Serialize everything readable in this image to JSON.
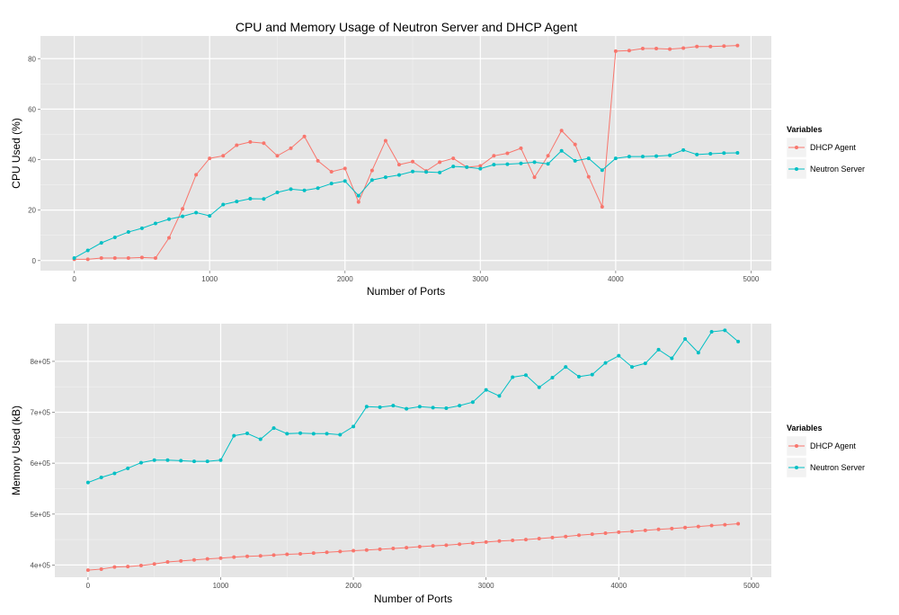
{
  "colors": {
    "dhcp_agent": "#F8766D",
    "neutron_server": "#00BFC4",
    "panel_bg": "#E5E5E5",
    "grid_major": "#FFFFFF",
    "grid_minor": "#F2F2F2"
  },
  "chart_data": [
    {
      "type": "line",
      "title": "CPU and Memory Usage of Neutron Server and DHCP Agent",
      "xlabel": "Number of Ports",
      "ylabel": "CPU Used (%)",
      "xlim": [
        -250,
        5150
      ],
      "ylim": [
        -4,
        89
      ],
      "x_ticks": [
        0,
        1000,
        2000,
        3000,
        4000,
        5000
      ],
      "x_tick_labels": [
        "0",
        "1000",
        "2000",
        "3000",
        "4000",
        "5000"
      ],
      "y_ticks": [
        0,
        20,
        40,
        60,
        80
      ],
      "y_tick_labels": [
        "0",
        "20",
        "40",
        "60",
        "80"
      ],
      "grid": true,
      "legend": {
        "title": "Variables",
        "position": "right"
      },
      "x": [
        0,
        100,
        200,
        300,
        400,
        500,
        600,
        700,
        800,
        900,
        1000,
        1100,
        1200,
        1300,
        1400,
        1500,
        1600,
        1700,
        1800,
        1900,
        2000,
        2100,
        2200,
        2300,
        2400,
        2500,
        2600,
        2700,
        2800,
        2900,
        3000,
        3100,
        3200,
        3300,
        3400,
        3500,
        3600,
        3700,
        3800,
        3900,
        4000,
        4100,
        4200,
        4300,
        4400,
        4500,
        4600,
        4700,
        4800,
        4900
      ],
      "series": [
        {
          "name": "DHCP Agent",
          "color_key": "dhcp_agent",
          "values": [
            0.5,
            0.5,
            1,
            1,
            1,
            1.2,
            1,
            9,
            20.5,
            34,
            40.5,
            41.5,
            45.7,
            47,
            46.5,
            41.5,
            44.5,
            49.2,
            39.5,
            35.2,
            36.5,
            23.2,
            35.7,
            47.5,
            38,
            39.2,
            35.5,
            39,
            40.5,
            37,
            37.5,
            41.5,
            42.5,
            44.5,
            33,
            41.5,
            51.5,
            46,
            33.2,
            21.3,
            83,
            83.2,
            84,
            84,
            83.8,
            84.2,
            84.8,
            84.8,
            85,
            85.2
          ]
        },
        {
          "name": "Neutron Server",
          "color_key": "neutron_server",
          "values": [
            1,
            4,
            7,
            9.2,
            11.3,
            12.8,
            14.7,
            16.4,
            17.5,
            19,
            17.7,
            22.2,
            23.4,
            24.5,
            24.4,
            27,
            28.3,
            27.8,
            28.7,
            30.5,
            31.5,
            25.7,
            31.9,
            33,
            33.9,
            35.3,
            35.1,
            34.9,
            37.3,
            37,
            36.4,
            38,
            38.2,
            38.5,
            39,
            38.3,
            43.5,
            39.5,
            40.5,
            35.8,
            40.5,
            41.2,
            41.2,
            41.4,
            41.7,
            43.8,
            42,
            42.3,
            42.6,
            42.7
          ]
        }
      ]
    },
    {
      "type": "line",
      "title": "",
      "xlabel": "Number of Ports",
      "ylabel": "Memory Used (kB)",
      "xlim": [
        -250,
        5150
      ],
      "ylim": [
        376000,
        874000
      ],
      "x_ticks": [
        0,
        1000,
        2000,
        3000,
        4000,
        5000
      ],
      "x_tick_labels": [
        "0",
        "1000",
        "2000",
        "3000",
        "4000",
        "5000"
      ],
      "y_ticks": [
        400000,
        500000,
        600000,
        700000,
        800000
      ],
      "y_tick_labels": [
        "4e+05",
        "5e+05",
        "6e+05",
        "7e+05",
        "8e+05"
      ],
      "grid": true,
      "legend": {
        "title": "Variables",
        "position": "right"
      },
      "x": [
        0,
        100,
        200,
        300,
        400,
        500,
        600,
        700,
        800,
        900,
        1000,
        1100,
        1200,
        1300,
        1400,
        1500,
        1600,
        1700,
        1800,
        1900,
        2000,
        2100,
        2200,
        2300,
        2400,
        2500,
        2600,
        2700,
        2800,
        2900,
        3000,
        3100,
        3200,
        3300,
        3400,
        3500,
        3600,
        3700,
        3800,
        3900,
        4000,
        4100,
        4200,
        4300,
        4400,
        4500,
        4600,
        4700,
        4800,
        4900
      ],
      "series": [
        {
          "name": "DHCP Agent",
          "color_key": "dhcp_agent",
          "values": [
            390000,
            392000,
            396000,
            397000,
            399000,
            402000,
            406000,
            408000,
            410000,
            412000,
            413500,
            415500,
            417000,
            418000,
            419500,
            421000,
            422000,
            423500,
            425000,
            426500,
            428000,
            429500,
            431000,
            432500,
            434000,
            436000,
            437500,
            439000,
            441000,
            443000,
            445000,
            447000,
            448500,
            450000,
            452000,
            454000,
            456000,
            458500,
            460500,
            462500,
            464500,
            466000,
            468000,
            470000,
            471500,
            473500,
            475500,
            477500,
            479000,
            481000
          ]
        },
        {
          "name": "Neutron Server",
          "color_key": "neutron_server",
          "values": [
            562000,
            572000,
            580000,
            590000,
            601000,
            606000,
            606000,
            605000,
            603500,
            603500,
            606000,
            654000,
            658500,
            647000,
            669000,
            658000,
            659000,
            658000,
            658000,
            656000,
            672000,
            711000,
            710000,
            713000,
            707000,
            711000,
            709000,
            708000,
            713000,
            720000,
            744000,
            732000,
            769000,
            773000,
            749000,
            768000,
            789000,
            770000,
            774000,
            797000,
            811000,
            789000,
            796000,
            823000,
            806000,
            844000,
            817000,
            858000,
            861000,
            839000
          ]
        }
      ]
    }
  ]
}
